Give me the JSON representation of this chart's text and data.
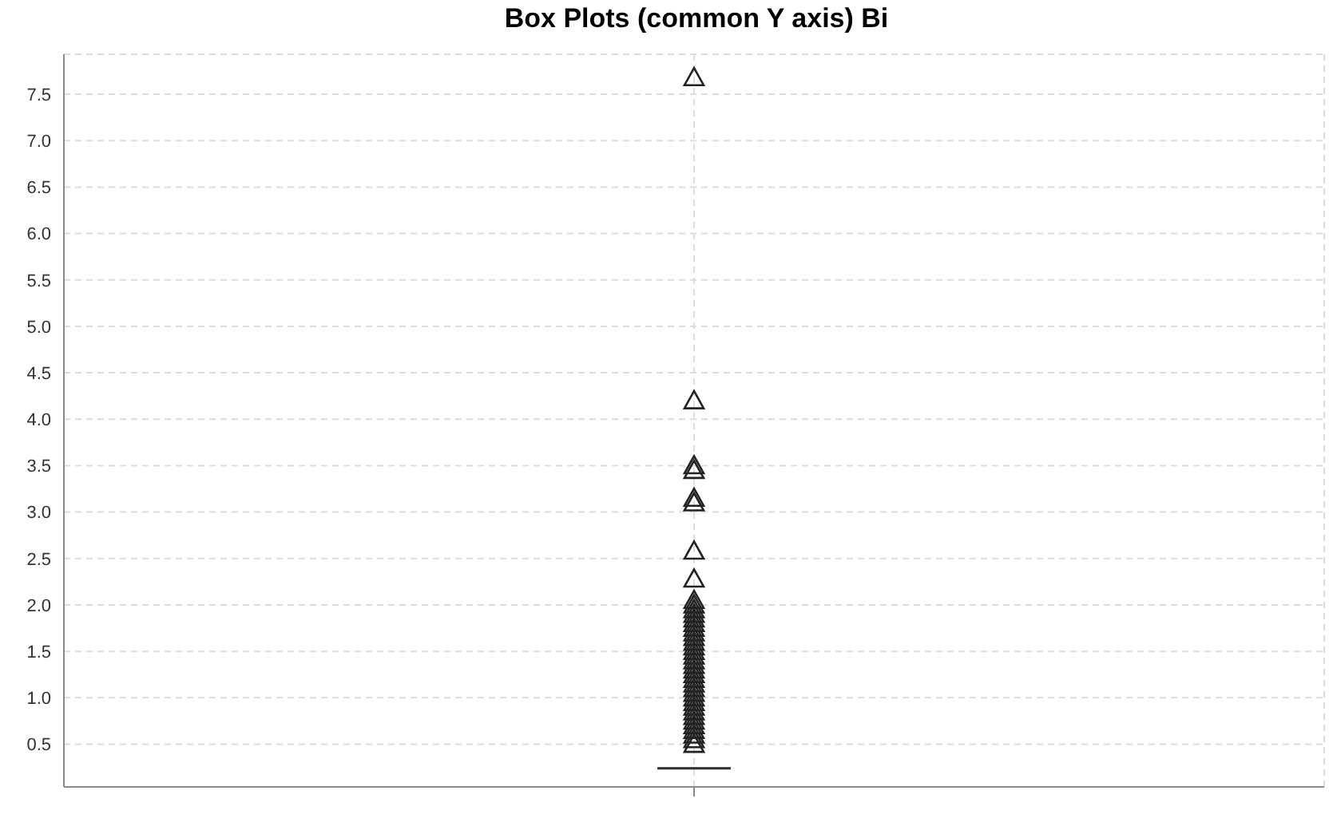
{
  "chart_data": {
    "type": "box",
    "title": "Box Plots (common Y axis) Bi",
    "categories": [
      null
    ],
    "boxes": [
      {
        "low": 0.24,
        "q1": 0.24,
        "median": 0.24,
        "q3": 0.24,
        "high": 0.24,
        "outliers": [
          7.68,
          4.2,
          3.5,
          3.45,
          3.15,
          3.1,
          2.58,
          2.28,
          2.05,
          2.0,
          1.95,
          1.9,
          1.85,
          1.8,
          1.75,
          1.7,
          1.65,
          1.6,
          1.55,
          1.5,
          1.45,
          1.4,
          1.35,
          1.3,
          1.25,
          1.2,
          1.15,
          1.1,
          1.05,
          1.0,
          0.95,
          0.9,
          0.85,
          0.8,
          0.75,
          0.7,
          0.65,
          0.6,
          0.55,
          0.5
        ]
      }
    ],
    "color": "#333333",
    "ylim": [
      0.04,
      7.93
    ],
    "yticks": [
      0.5,
      {
        "value": 1,
        "label": "1.0"
      },
      1.5,
      {
        "value": 2,
        "label": "2.0"
      },
      2.5,
      {
        "value": 3,
        "label": "3.0"
      },
      3.5,
      {
        "value": 4,
        "label": "4.0"
      },
      4.5,
      {
        "value": 5,
        "label": "5.0"
      },
      5.5,
      {
        "value": 6,
        "label": "6.0"
      },
      6.5,
      {
        "value": 7,
        "label": "7.0"
      },
      7.5
    ],
    "grid": true,
    "marker": "triangle"
  }
}
